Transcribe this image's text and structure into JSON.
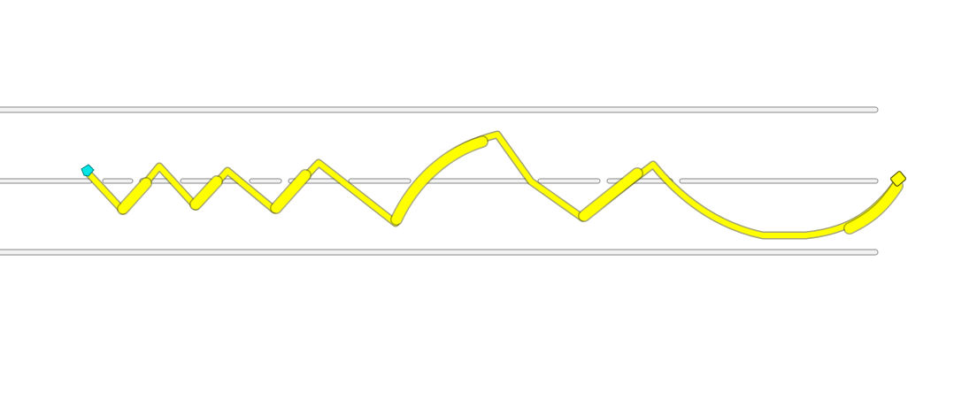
{
  "scene": {
    "background": "#ffffff",
    "lane_line_color": "#9e9e9e",
    "lane_line_fill": "#f2f2f2",
    "track_color": "#ffff00",
    "track_outline": "#5a5a00",
    "start_marker_color": "#00e5e5",
    "start_marker_outline": "#008080",
    "lanes": [
      "top-boundary",
      "center-line",
      "bottom-boundary"
    ],
    "center_line_style": "dashed"
  }
}
